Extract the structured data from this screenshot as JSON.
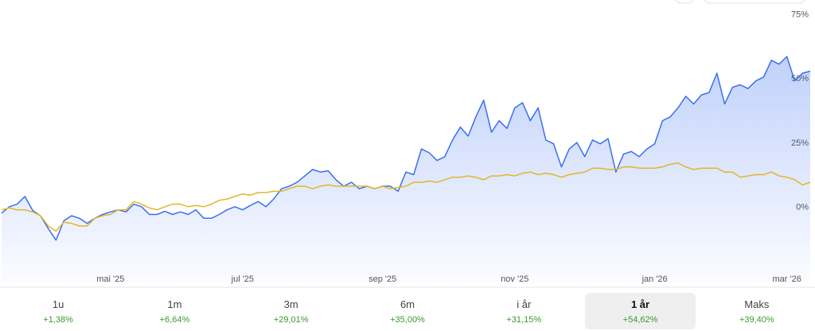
{
  "chart_data": {
    "type": "line",
    "categories": [
      null,
      null,
      null,
      null,
      null,
      null,
      null,
      null,
      null,
      null,
      null,
      null,
      null,
      null,
      "mai '25",
      null,
      null,
      null,
      null,
      null,
      null,
      null,
      null,
      null,
      null,
      null,
      null,
      null,
      null,
      null,
      null,
      "jul '25",
      null,
      null,
      null,
      null,
      null,
      null,
      null,
      null,
      null,
      null,
      null,
      null,
      null,
      null,
      null,
      null,
      null,
      "sep '25",
      null,
      null,
      null,
      null,
      null,
      null,
      null,
      null,
      null,
      null,
      null,
      null,
      null,
      null,
      null,
      null,
      "nov '25",
      null,
      null,
      null,
      null,
      null,
      null,
      null,
      null,
      null,
      null,
      null,
      null,
      null,
      null,
      null,
      null,
      null,
      "jan '26",
      null,
      null,
      null,
      null,
      null,
      null,
      null,
      null,
      null,
      null,
      null,
      null,
      null,
      null,
      null,
      null,
      "mar '26",
      null,
      null,
      null
    ],
    "series": [
      {
        "color": "#3b6ff0",
        "area": true,
        "values": [
          -1,
          1.5,
          2.5,
          5.5,
          0,
          -2,
          -7,
          -11.5,
          -4,
          -2,
          -3,
          -5,
          -3,
          -1.5,
          -0.5,
          0.3,
          -0.5,
          2.5,
          1.5,
          -1.5,
          -1.5,
          -0.3,
          -1.5,
          -0.5,
          -1.5,
          0.3,
          -3,
          -3,
          -1.5,
          0.3,
          1.5,
          0.3,
          2,
          3.5,
          1.5,
          4.5,
          8.5,
          9.5,
          11,
          13.5,
          16,
          15,
          15.5,
          12,
          9.5,
          11,
          8.5,
          9.5,
          8.5,
          9.5,
          9.5,
          7.5,
          15,
          14,
          24,
          22.5,
          19.5,
          21,
          27.5,
          32.5,
          29,
          36.5,
          43,
          30.5,
          35,
          32,
          40,
          42,
          35,
          40,
          27.5,
          26,
          17,
          24,
          26.5,
          21,
          27.5,
          26,
          28,
          15,
          22,
          23,
          21,
          24,
          26,
          35,
          36.5,
          40,
          44.5,
          41.5,
          45,
          46,
          53.5,
          41.5,
          48,
          49,
          47.5,
          50.5,
          52,
          58.5,
          57,
          60,
          50.5,
          53.5,
          54.3
        ]
      },
      {
        "color": "#e2b62a",
        "area": false,
        "values": [
          0.3,
          1,
          0.3,
          0.3,
          -0.5,
          -2,
          -6,
          -8,
          -4.5,
          -5,
          -6,
          -6,
          -3,
          -2,
          -1.5,
          0.3,
          0.3,
          3.5,
          2.5,
          1,
          0.3,
          1.5,
          2.5,
          2.5,
          1.5,
          2,
          1.5,
          2.5,
          4,
          4.5,
          5.5,
          6.5,
          6,
          7,
          7,
          7.5,
          7.5,
          8.5,
          9.5,
          9.5,
          8.5,
          9.5,
          10,
          9.5,
          9.5,
          9.5,
          9.5,
          9.5,
          8.5,
          9.5,
          8.5,
          9,
          9.5,
          11,
          11,
          11.5,
          11,
          12,
          13,
          13,
          13.5,
          13,
          12,
          13.5,
          13.5,
          14,
          13.5,
          14.5,
          15,
          14,
          14.5,
          14,
          13,
          14,
          14.5,
          15,
          16.5,
          16.5,
          16,
          16,
          17,
          17,
          16.5,
          16.5,
          16.5,
          17,
          18,
          18.5,
          17,
          16,
          16.5,
          16.5,
          16.5,
          15,
          15,
          13,
          13.5,
          14,
          14,
          15,
          13.5,
          13,
          12,
          10,
          11
        ]
      }
    ],
    "ylim": [
      -28,
      82
    ],
    "yticks": [
      {
        "value": 0,
        "label": "0%"
      },
      {
        "value": 25,
        "label": "25%"
      },
      {
        "value": 50,
        "label": "50%"
      },
      {
        "value": 75,
        "label": "75%"
      }
    ],
    "grid": false
  },
  "period_tabs": [
    {
      "label": "1u",
      "change": "+1,38%",
      "selected": false
    },
    {
      "label": "1m",
      "change": "+6,64%",
      "selected": false
    },
    {
      "label": "3m",
      "change": "+29,01%",
      "selected": false
    },
    {
      "label": "6m",
      "change": "+35,00%",
      "selected": false
    },
    {
      "label": "i år",
      "change": "+31,15%",
      "selected": false
    },
    {
      "label": "1 år",
      "change": "+54,62%",
      "selected": true
    },
    {
      "label": "Maks",
      "change": "+39,40%",
      "selected": false
    }
  ]
}
